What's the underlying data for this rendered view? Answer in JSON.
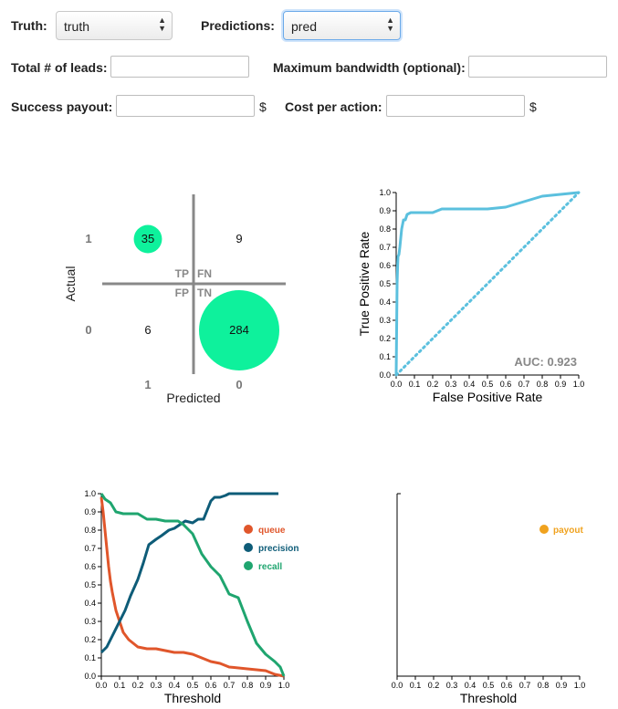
{
  "form": {
    "truth_label": "Truth:",
    "truth_value": "truth",
    "predictions_label": "Predictions:",
    "predictions_value": "pred",
    "total_leads_label": "Total # of leads:",
    "total_leads_value": "",
    "bandwidth_label": "Maximum bandwidth (optional):",
    "bandwidth_value": "",
    "success_payout_label": "Success payout:",
    "success_payout_value": "",
    "cost_per_action_label": "Cost per action:",
    "cost_per_action_value": "",
    "currency": "$"
  },
  "chart_data": [
    {
      "type": "confusion_matrix",
      "xlabel": "Predicted",
      "ylabel": "Actual",
      "row_labels": [
        "1",
        "0"
      ],
      "col_labels": [
        "1",
        "0"
      ],
      "quadrant_labels": [
        "TP",
        "FN",
        "FP",
        "TN"
      ],
      "cells": [
        {
          "quadrant": "TP",
          "actual": "1",
          "predicted": "1",
          "value": 35
        },
        {
          "quadrant": "FN",
          "actual": "1",
          "predicted": "0",
          "value": 9
        },
        {
          "quadrant": "FP",
          "actual": "0",
          "predicted": "1",
          "value": 6
        },
        {
          "quadrant": "TN",
          "actual": "0",
          "predicted": "0",
          "value": 284
        }
      ],
      "colors": {
        "bubble": "#0ef19c",
        "axes": "#888888"
      }
    },
    {
      "type": "line",
      "xlabel": "False Positive Rate",
      "ylabel": "True Positive Rate",
      "xlim": [
        0,
        1
      ],
      "ylim": [
        0,
        1
      ],
      "ticks": [
        "0.0",
        "0.1",
        "0.2",
        "0.3",
        "0.4",
        "0.5",
        "0.6",
        "0.7",
        "0.8",
        "0.9",
        "1.0"
      ],
      "annotation": "AUC: 0.923",
      "series": [
        {
          "style": "solid",
          "color": "#5bc0de",
          "x": [
            0,
            0.003,
            0.005,
            0.008,
            0.01,
            0.015,
            0.02,
            0.025,
            0.03,
            0.04,
            0.05,
            0.06,
            0.08,
            0.1,
            0.12,
            0.15,
            0.2,
            0.25,
            0.3,
            0.4,
            0.5,
            0.6,
            0.7,
            0.8,
            0.9,
            1.0
          ],
          "y": [
            0,
            0.3,
            0.5,
            0.6,
            0.65,
            0.66,
            0.7,
            0.75,
            0.8,
            0.85,
            0.85,
            0.88,
            0.89,
            0.89,
            0.89,
            0.89,
            0.89,
            0.91,
            0.91,
            0.91,
            0.91,
            0.92,
            0.95,
            0.98,
            0.99,
            1.0
          ]
        },
        {
          "style": "dotted",
          "color": "#5bc0de",
          "x": [
            0,
            1
          ],
          "y": [
            0,
            1
          ]
        }
      ]
    },
    {
      "type": "line",
      "xlabel": "Threshold",
      "xlim": [
        0,
        1
      ],
      "ylim": [
        0,
        1
      ],
      "ticks": [
        "0.0",
        "0.1",
        "0.2",
        "0.3",
        "0.4",
        "0.5",
        "0.6",
        "0.7",
        "0.8",
        "0.9",
        "1.0"
      ],
      "legend_position": "right",
      "series": [
        {
          "name": "queue",
          "color": "#e0562b",
          "x": [
            0,
            0.01,
            0.02,
            0.03,
            0.04,
            0.05,
            0.06,
            0.08,
            0.1,
            0.12,
            0.15,
            0.2,
            0.25,
            0.3,
            0.35,
            0.4,
            0.45,
            0.5,
            0.55,
            0.6,
            0.65,
            0.7,
            0.8,
            0.9,
            0.95,
            1.0
          ],
          "y": [
            0.98,
            0.9,
            0.8,
            0.7,
            0.6,
            0.52,
            0.46,
            0.36,
            0.3,
            0.24,
            0.2,
            0.16,
            0.15,
            0.15,
            0.14,
            0.13,
            0.13,
            0.12,
            0.1,
            0.08,
            0.07,
            0.05,
            0.04,
            0.03,
            0.01,
            0.0
          ]
        },
        {
          "name": "precision",
          "color": "#0e5c78",
          "x": [
            0,
            0.03,
            0.06,
            0.1,
            0.13,
            0.16,
            0.2,
            0.23,
            0.26,
            0.3,
            0.33,
            0.37,
            0.4,
            0.43,
            0.46,
            0.5,
            0.53,
            0.56,
            0.6,
            0.62,
            0.65,
            0.68,
            0.7,
            0.8,
            0.9,
            0.97
          ],
          "y": [
            0.13,
            0.16,
            0.22,
            0.3,
            0.36,
            0.44,
            0.53,
            0.62,
            0.72,
            0.75,
            0.77,
            0.8,
            0.81,
            0.83,
            0.85,
            0.84,
            0.86,
            0.86,
            0.96,
            0.98,
            0.98,
            0.99,
            1.0,
            1.0,
            1.0,
            1.0
          ]
        },
        {
          "name": "recall",
          "color": "#1fa56f",
          "x": [
            0,
            0.02,
            0.05,
            0.08,
            0.12,
            0.15,
            0.2,
            0.25,
            0.3,
            0.35,
            0.4,
            0.42,
            0.45,
            0.5,
            0.55,
            0.6,
            0.65,
            0.7,
            0.75,
            0.8,
            0.85,
            0.9,
            0.95,
            0.98,
            1.0
          ],
          "y": [
            1.0,
            0.97,
            0.95,
            0.9,
            0.89,
            0.89,
            0.89,
            0.86,
            0.86,
            0.85,
            0.85,
            0.85,
            0.83,
            0.78,
            0.67,
            0.6,
            0.55,
            0.45,
            0.43,
            0.3,
            0.18,
            0.12,
            0.08,
            0.05,
            0.0
          ]
        }
      ]
    },
    {
      "type": "line",
      "xlabel": "Threshold",
      "xlim": [
        0,
        1
      ],
      "ticks": [
        "0.0",
        "0.1",
        "0.2",
        "0.3",
        "0.4",
        "0.5",
        "0.6",
        "0.7",
        "0.8",
        "0.9",
        "1.0"
      ],
      "legend_position": "right",
      "series": [
        {
          "name": "payout",
          "color": "#f0a21e",
          "x": [],
          "y": []
        }
      ]
    }
  ]
}
